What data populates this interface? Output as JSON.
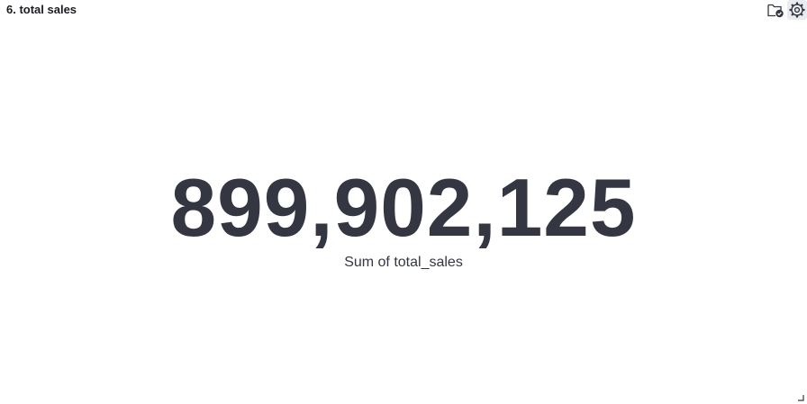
{
  "panel": {
    "title": "6. total sales"
  },
  "actions": [
    {
      "icon": "folder-check-icon"
    },
    {
      "icon": "gear-icon"
    }
  ],
  "metric": {
    "value": "899,902,125",
    "label": "Sum of total_sales"
  }
}
